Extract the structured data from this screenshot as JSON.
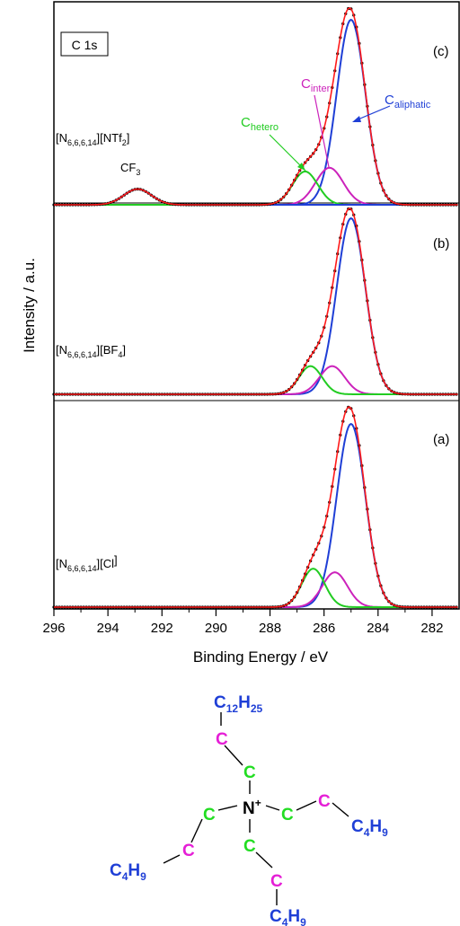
{
  "chart_data": {
    "type": "line",
    "title_box": "C 1s",
    "xlabel": "Binding Energy / eV",
    "ylabel": "Intensity / a.u.",
    "xlim": [
      296,
      281
    ],
    "x_reversed": true,
    "xticks": [
      296,
      294,
      292,
      290,
      288,
      286,
      284,
      282
    ],
    "colors": {
      "data": "#000000",
      "envelope": "#ff1a1a",
      "aliphatic": "#1f3fd6",
      "hetero": "#22cc22",
      "inter": "#cc22bb",
      "cf3": "#1f3fd6"
    },
    "panels": [
      {
        "id": "c",
        "tag": "(c)",
        "sample": {
          "base": "[N",
          "sub": "6,6,6,14",
          "mid": "][NTf",
          "sub2": "2",
          "end": "]"
        },
        "components": [
          {
            "name": "C aliphatic",
            "center": 285.0,
            "height": 1.0,
            "fwhm": 1.25
          },
          {
            "name": "C inter",
            "center": 285.8,
            "height": 0.2,
            "fwhm": 1.2
          },
          {
            "name": "C hetero",
            "center": 286.7,
            "height": 0.18,
            "fwhm": 1.1
          },
          {
            "name": "CF3",
            "center": 292.9,
            "height": 0.085,
            "fwhm": 1.2
          }
        ]
      },
      {
        "id": "b",
        "tag": "(b)",
        "sample": {
          "base": "[N",
          "sub": "6,6,6,14",
          "mid": "][BF",
          "sub2": "4",
          "end": "]"
        },
        "components": [
          {
            "name": "C aliphatic",
            "center": 285.0,
            "height": 1.0,
            "fwhm": 1.25
          },
          {
            "name": "C inter",
            "center": 285.7,
            "height": 0.16,
            "fwhm": 1.1
          },
          {
            "name": "C hetero",
            "center": 286.5,
            "height": 0.16,
            "fwhm": 1.0
          }
        ]
      },
      {
        "id": "a",
        "tag": "(a)",
        "sample": {
          "base": "[N",
          "sub": "6,6,6,14",
          "mid": "][Cl",
          "sub2": "",
          "end": "]"
        },
        "components": [
          {
            "name": "C aliphatic",
            "center": 285.0,
            "height": 1.0,
            "fwhm": 1.25
          },
          {
            "name": "C inter",
            "center": 285.6,
            "height": 0.19,
            "fwhm": 1.1
          },
          {
            "name": "C hetero",
            "center": 286.4,
            "height": 0.21,
            "fwhm": 1.0
          }
        ]
      }
    ],
    "annotations": {
      "cf3": {
        "text": "CF",
        "sub": "3"
      },
      "c_hetero": {
        "text": "C",
        "sub": "hetero"
      },
      "c_inter": {
        "text": "C",
        "sub": "inter"
      },
      "c_aliphatic": {
        "text": "C",
        "sub": "aliphatic"
      }
    }
  },
  "molecule": {
    "top_group": {
      "main": "C",
      "sub1": "12",
      "mid": "H",
      "sub2": "25"
    },
    "carbon": "C",
    "nitrogen": "N",
    "charge": "+",
    "butyl": {
      "main": "C",
      "sub1": "4",
      "mid": "H",
      "sub2": "9"
    },
    "colors": {
      "blue": "#1f3fd6",
      "magenta": "#e51ed6",
      "green": "#22dd22",
      "black": "#000000"
    }
  }
}
